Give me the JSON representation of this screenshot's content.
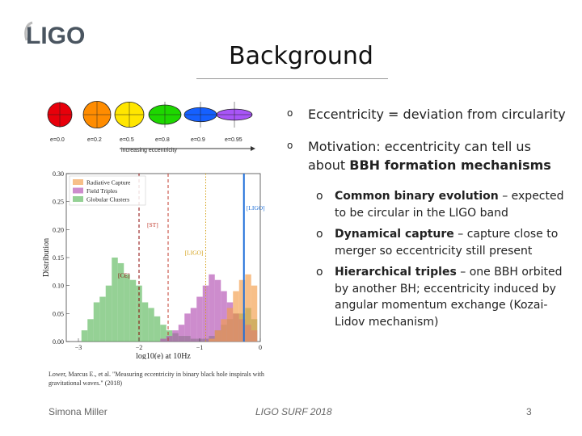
{
  "header": {
    "logo_text": "LIGO",
    "title": "Background"
  },
  "eccentricity_figure": {
    "labels": [
      "e=0.0",
      "e=0.2",
      "e=0.5",
      "e=0.8",
      "e=0.9",
      "e=0.95"
    ],
    "arrow_label": "increasing eccentricity",
    "colors": [
      "#e8000b",
      "#ff8c00",
      "#ffe600",
      "#1ed700",
      "#1560ff",
      "#a855f7"
    ]
  },
  "chart_data": {
    "type": "bar",
    "xlabel": "log10(e) at 10Hz",
    "ylabel": "Distribution",
    "xlim": [
      -3.2,
      0
    ],
    "ylim": [
      0,
      0.3
    ],
    "xticks": [
      "−3",
      "−2",
      "−1",
      "0"
    ],
    "yticks": [
      "0.00",
      "0.05",
      "0.10",
      "0.15",
      "0.20",
      "0.25",
      "0.30"
    ],
    "legend": [
      "Radiative Capture",
      "Field Triples",
      "Globular Clusters"
    ],
    "legend_position": "top-left",
    "series": [
      {
        "name": "Globular Clusters",
        "color": "#5cb85c",
        "x": [
          -2.9,
          -2.8,
          -2.7,
          -2.6,
          -2.5,
          -2.4,
          -2.3,
          -2.2,
          -2.1,
          -2.0,
          -1.9,
          -1.8,
          -1.7,
          -1.6,
          -1.5,
          -1.4,
          -1.3,
          -1.2,
          -1.1,
          -1.0,
          -0.9,
          -0.8,
          -0.7,
          -0.6,
          -0.5,
          -0.4,
          -0.3,
          -0.2,
          -0.1
        ],
        "values": [
          0.02,
          0.04,
          0.07,
          0.08,
          0.1,
          0.15,
          0.14,
          0.12,
          0.11,
          0.1,
          0.07,
          0.06,
          0.045,
          0.03,
          0.02,
          0.015,
          0.01,
          0.01,
          0.005,
          0.005,
          0.005,
          0.01,
          0.02,
          0.03,
          0.04,
          0.05,
          0.05,
          0.06,
          0.04
        ]
      },
      {
        "name": "Field Triples",
        "color": "#b24fb2",
        "x": [
          -1.6,
          -1.5,
          -1.4,
          -1.3,
          -1.2,
          -1.1,
          -1.0,
          -0.9,
          -0.8,
          -0.7,
          -0.6,
          -0.5,
          -0.4,
          -0.3,
          -0.2,
          -0.1
        ],
        "values": [
          0.005,
          0.01,
          0.02,
          0.03,
          0.05,
          0.06,
          0.08,
          0.1,
          0.12,
          0.11,
          0.09,
          0.07,
          0.05,
          0.04,
          0.03,
          0.02
        ]
      },
      {
        "name": "Radiative Capture",
        "color": "#f39c4a",
        "x": [
          -0.8,
          -0.7,
          -0.6,
          -0.5,
          -0.4,
          -0.3,
          -0.2,
          -0.1
        ],
        "values": [
          0.005,
          0.02,
          0.04,
          0.06,
          0.09,
          0.11,
          0.12,
          0.1
        ]
      }
    ],
    "annotations": [
      {
        "label": "[ST]",
        "x": -1.52,
        "y": 0.205,
        "color": "#c0392b",
        "style": "dashed"
      },
      {
        "label": "[CE]",
        "x": -2.0,
        "y": 0.115,
        "color": "#8b0000",
        "style": "dashed"
      },
      {
        "label": "[LIGO]",
        "x": -0.27,
        "y": 0.235,
        "color": "#1e6fd9",
        "style": "solid"
      },
      {
        "label": "[LIGO]",
        "x": -0.9,
        "y": 0.155,
        "color": "#d4a017",
        "style": "dotted"
      }
    ]
  },
  "caption": "Lower, Marcus E., et al. \"Measuring eccentricity in binary black hole inspirals with gravitational waves.\" (2018)",
  "bullets": [
    {
      "text": "Eccentricity = deviation from circularity"
    },
    {
      "text": "Motivation: eccentricity can tell us about ",
      "bold": "BBH formation mechanisms"
    }
  ],
  "sub_bullets": [
    {
      "bold": "Common binary evolution",
      "text": " – expected to be circular in the LIGO band"
    },
    {
      "bold": "Dynamical capture",
      "text": " – capture close to merger so eccentricity still present"
    },
    {
      "bold": "Hierarchical triples",
      "text": " – one BBH orbited by another BH; eccentricity induced by angular momentum exchange (Kozai-Lidov mechanism)"
    }
  ],
  "footer": {
    "author": "Simona Miller",
    "event": "LIGO SURF 2018",
    "page": "3"
  }
}
